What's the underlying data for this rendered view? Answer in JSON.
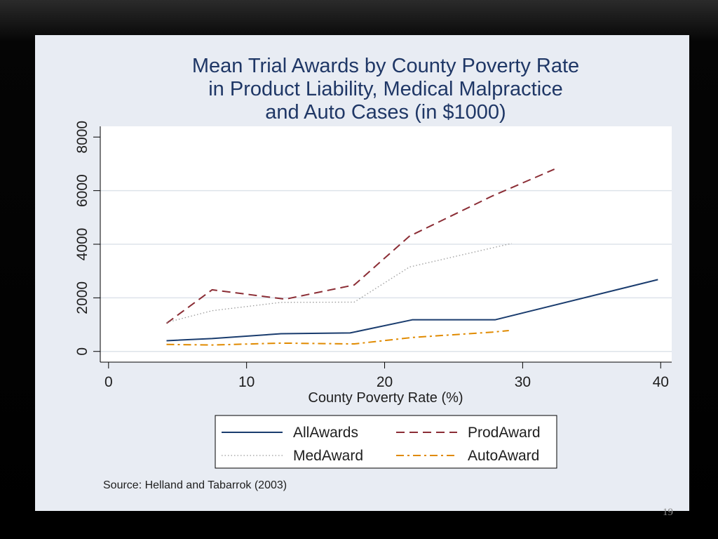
{
  "chart_data": {
    "type": "line",
    "title": "Mean Trial Awards by County Poverty Rate in Product Liability, Medical Malpractice and Auto Cases (in $1000)",
    "title_lines": [
      "Mean Trial Awards by County Poverty Rate",
      "in Product Liability, Medical Malpractice",
      "and Auto Cases (in $1000)"
    ],
    "xlabel": "County Poverty Rate (%)",
    "ylabel": "",
    "xlim": [
      -0.6,
      40.8
    ],
    "ylim": [
      -400,
      8400
    ],
    "xticks": [
      0,
      10,
      20,
      30,
      40
    ],
    "yticks": [
      0,
      2000,
      4000,
      6000,
      8000
    ],
    "grid": true,
    "legend_position": "bottom",
    "series": [
      {
        "name": "AllAwards",
        "color": "#1a3c6e",
        "style": "solid",
        "x": [
          4.2,
          7.5,
          12.5,
          17.5,
          22,
          28,
          39.8
        ],
        "y": [
          400,
          480,
          660,
          690,
          1180,
          1180,
          2680
        ]
      },
      {
        "name": "ProdAward",
        "color": "#8b2d35",
        "style": "dashed",
        "x": [
          4.2,
          7.5,
          12.8,
          17.8,
          21.8,
          27.8,
          32.3
        ],
        "y": [
          1050,
          2300,
          1950,
          2480,
          4300,
          5800,
          6800
        ]
      },
      {
        "name": "MedAward",
        "color": "#9a9a9a",
        "style": "dotted",
        "x": [
          4.2,
          7.5,
          12.5,
          17.8,
          21.8,
          29.2
        ],
        "y": [
          1080,
          1520,
          1830,
          1840,
          3150,
          4030
        ]
      },
      {
        "name": "AutoAward",
        "color": "#e08a00",
        "style": "dashdot",
        "x": [
          4.2,
          7.5,
          12.5,
          17.8,
          22,
          27.8,
          29
        ],
        "y": [
          260,
          240,
          310,
          280,
          520,
          720,
          780
        ]
      }
    ],
    "source_note": "Source: Helland and Tabarrok (2003)"
  },
  "slide": {
    "page_number": "19"
  }
}
